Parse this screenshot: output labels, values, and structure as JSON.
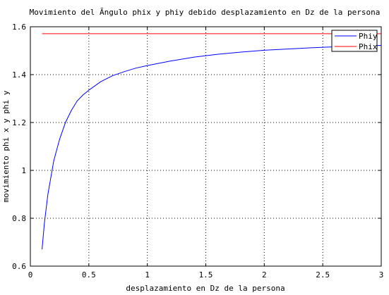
{
  "chart_data": {
    "type": "line",
    "title": "Movimiento del Ãngulo phix  y phiy debido desplazamiento en Dz de la persona",
    "xlabel": "desplazamiento en Dz de la persona",
    "ylabel": "movimiento phi x y phi y",
    "xlim": [
      0,
      3
    ],
    "ylim": [
      0.6,
      1.6
    ],
    "xticks": [
      0,
      0.5,
      1,
      1.5,
      2,
      2.5,
      3
    ],
    "xtick_labels": [
      "0",
      "0.5",
      "1",
      "1.5",
      "2",
      "2.5",
      "3"
    ],
    "yticks": [
      0.6,
      0.8,
      1.0,
      1.2,
      1.4,
      1.6
    ],
    "ytick_labels": [
      "0.6",
      "0.8",
      "1",
      "1.2",
      "1.4",
      "1.6"
    ],
    "grid": true,
    "grid_style": "dotted",
    "legend_position": "top-right",
    "series": [
      {
        "name": "Phiy",
        "color": "#0000ff",
        "x": [
          0.1,
          0.12,
          0.15,
          0.2,
          0.25,
          0.3,
          0.35,
          0.4,
          0.45,
          0.5,
          0.6,
          0.7,
          0.8,
          0.9,
          1.0,
          1.2,
          1.4,
          1.6,
          1.8,
          2.0,
          2.2,
          2.4,
          2.6,
          2.8,
          3.0
        ],
        "values": [
          0.67,
          0.78,
          0.9,
          1.04,
          1.13,
          1.2,
          1.25,
          1.29,
          1.315,
          1.335,
          1.37,
          1.395,
          1.412,
          1.427,
          1.438,
          1.457,
          1.473,
          1.485,
          1.494,
          1.502,
          1.507,
          1.512,
          1.516,
          1.519,
          1.522
        ]
      },
      {
        "name": "Phix",
        "color": "#ff0000",
        "x": [
          0.1,
          3.0
        ],
        "values": [
          1.571,
          1.571
        ]
      }
    ]
  }
}
